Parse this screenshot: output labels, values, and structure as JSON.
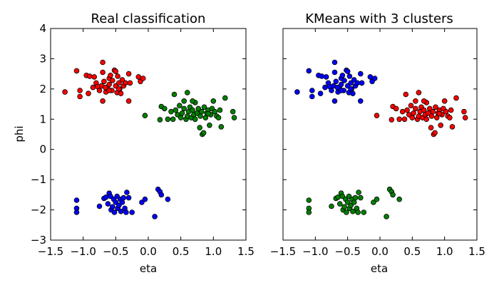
{
  "chart_data": [
    {
      "type": "scatter",
      "title": "Real classification",
      "xlabel": "eta",
      "ylabel": "phi",
      "xlim": [
        -1.5,
        1.5
      ],
      "ylim": [
        -3,
        4
      ],
      "xticks": [
        -1.5,
        -1.0,
        -0.5,
        0.0,
        0.5,
        1.0,
        1.5
      ],
      "xtick_labels": [
        "−1.5",
        "−1.0",
        "−0.5",
        "0.0",
        "0.5",
        "1.0",
        "1.5"
      ],
      "yticks": [
        -3,
        -2,
        -1,
        0,
        1,
        2,
        3,
        4
      ],
      "ytick_labels": [
        "−3",
        "−2",
        "−1",
        "0",
        "1",
        "2",
        "3",
        "4"
      ],
      "grid": false,
      "series": [
        {
          "color": "#ff0000",
          "points": [
            [
              -1.28,
              1.9
            ],
            [
              -1.1,
              2.6
            ],
            [
              -1.05,
              1.75
            ],
            [
              -1.05,
              1.95
            ],
            [
              -0.95,
              2.45
            ],
            [
              -0.9,
              2.42
            ],
            [
              -0.92,
              1.85
            ],
            [
              -0.85,
              2.05
            ],
            [
              -0.83,
              2.4
            ],
            [
              -0.8,
              2.2
            ],
            [
              -0.75,
              1.95
            ],
            [
              -0.72,
              2.1
            ],
            [
              -0.7,
              2.88
            ],
            [
              -0.7,
              2.55
            ],
            [
              -0.7,
              1.6
            ],
            [
              -0.68,
              2.25
            ],
            [
              -0.65,
              1.9
            ],
            [
              -0.62,
              2.0
            ],
            [
              -0.6,
              2.35
            ],
            [
              -0.6,
              2.15
            ],
            [
              -0.58,
              2.45
            ],
            [
              -0.56,
              1.95
            ],
            [
              -0.55,
              2.28
            ],
            [
              -0.52,
              2.62
            ],
            [
              -0.5,
              2.58
            ],
            [
              -0.5,
              2.1
            ],
            [
              -0.48,
              1.88
            ],
            [
              -0.47,
              2.42
            ],
            [
              -0.45,
              2.2
            ],
            [
              -0.44,
              2.0
            ],
            [
              -0.42,
              1.85
            ],
            [
              -0.4,
              2.3
            ],
            [
              -0.38,
              2.1
            ],
            [
              -0.35,
              2.2
            ],
            [
              -0.3,
              2.5
            ],
            [
              -0.3,
              1.6
            ],
            [
              -0.28,
              2.2
            ],
            [
              -0.15,
              2.4
            ],
            [
              -0.12,
              2.25
            ],
            [
              -0.08,
              2.35
            ],
            [
              -0.6,
              1.95
            ],
            [
              -0.66,
              2.05
            ],
            [
              -0.78,
              2.08
            ],
            [
              -0.45,
              2.0
            ]
          ]
        },
        {
          "color": "#008000",
          "points": [
            [
              -0.05,
              1.12
            ],
            [
              0.2,
              1.42
            ],
            [
              0.25,
              1.35
            ],
            [
              0.18,
              0.98
            ],
            [
              0.3,
              1.0
            ],
            [
              0.35,
              1.25
            ],
            [
              0.38,
              1.0
            ],
            [
              0.4,
              1.82
            ],
            [
              0.42,
              1.3
            ],
            [
              0.45,
              1.15
            ],
            [
              0.48,
              1.45
            ],
            [
              0.5,
              1.05
            ],
            [
              0.52,
              1.2
            ],
            [
              0.55,
              1.35
            ],
            [
              0.58,
              1.0
            ],
            [
              0.6,
              1.88
            ],
            [
              0.6,
              1.1
            ],
            [
              0.62,
              1.25
            ],
            [
              0.64,
              1.4
            ],
            [
              0.66,
              1.05
            ],
            [
              0.68,
              1.3
            ],
            [
              0.7,
              1.15
            ],
            [
              0.72,
              1.0
            ],
            [
              0.72,
              1.55
            ],
            [
              0.75,
              1.2
            ],
            [
              0.77,
              1.35
            ],
            [
              0.79,
              0.72
            ],
            [
              0.8,
              1.1
            ],
            [
              0.82,
              1.25
            ],
            [
              0.83,
              0.5
            ],
            [
              0.85,
              0.55
            ],
            [
              0.86,
              1.4
            ],
            [
              0.88,
              1.05
            ],
            [
              0.9,
              1.2
            ],
            [
              0.92,
              1.3
            ],
            [
              0.94,
              0.8
            ],
            [
              0.96,
              1.15
            ],
            [
              0.98,
              1.35
            ],
            [
              1.0,
              1.6
            ],
            [
              1.02,
              1.25
            ],
            [
              1.05,
              1.1
            ],
            [
              1.08,
              1.05
            ],
            [
              1.1,
              1.3
            ],
            [
              1.12,
              0.75
            ],
            [
              1.18,
              1.7
            ],
            [
              1.3,
              1.25
            ],
            [
              1.32,
              1.05
            ],
            [
              0.68,
              1.6
            ],
            [
              0.55,
              1.6
            ],
            [
              0.92,
              1.18
            ]
          ]
        },
        {
          "color": "#0000ff",
          "points": [
            [
              -1.1,
              -1.68
            ],
            [
              -1.1,
              -1.95
            ],
            [
              -1.1,
              -2.08
            ],
            [
              -0.75,
              -1.88
            ],
            [
              -0.68,
              -1.62
            ],
            [
              -0.65,
              -1.58
            ],
            [
              -0.62,
              -1.8
            ],
            [
              -0.6,
              -1.45
            ],
            [
              -0.58,
              -1.55
            ],
            [
              -0.57,
              -2.0
            ],
            [
              -0.55,
              -1.9
            ],
            [
              -0.53,
              -1.65
            ],
            [
              -0.52,
              -2.08
            ],
            [
              -0.5,
              -1.75
            ],
            [
              -0.48,
              -1.55
            ],
            [
              -0.47,
              -1.95
            ],
            [
              -0.45,
              -1.85
            ],
            [
              -0.43,
              -1.65
            ],
            [
              -0.42,
              -2.05
            ],
            [
              -0.4,
              -1.75
            ],
            [
              -0.38,
              -1.6
            ],
            [
              -0.36,
              -1.95
            ],
            [
              -0.34,
              -2.08
            ],
            [
              -0.33,
              -1.42
            ],
            [
              -0.3,
              -1.6
            ],
            [
              -0.25,
              -2.08
            ],
            [
              -0.1,
              -1.75
            ],
            [
              -0.05,
              -1.65
            ],
            [
              0.1,
              -2.22
            ],
            [
              0.15,
              -1.32
            ],
            [
              0.18,
              -1.4
            ],
            [
              0.2,
              -1.5
            ],
            [
              0.3,
              -1.65
            ]
          ]
        }
      ]
    },
    {
      "type": "scatter",
      "title": "KMeans with 3 clusters",
      "xlabel": "eta",
      "xlim": [
        -1.5,
        1.5
      ],
      "ylim": [
        -3,
        4
      ],
      "xticks": [
        -1.5,
        -1.0,
        -0.5,
        0.0,
        0.5,
        1.0,
        1.5
      ],
      "xtick_labels": [
        "−1.5",
        "−1.0",
        "−0.5",
        "0.0",
        "0.5",
        "1.0",
        "1.5"
      ],
      "yticks": [
        -3,
        -2,
        -1,
        0,
        1,
        2,
        3,
        4
      ],
      "grid": false,
      "series": [
        {
          "color": "#0000ff",
          "points": [
            [
              -1.28,
              1.9
            ],
            [
              -1.1,
              2.6
            ],
            [
              -1.05,
              1.75
            ],
            [
              -1.05,
              1.95
            ],
            [
              -0.95,
              2.45
            ],
            [
              -0.9,
              2.42
            ],
            [
              -0.92,
              1.85
            ],
            [
              -0.85,
              2.05
            ],
            [
              -0.83,
              2.4
            ],
            [
              -0.8,
              2.2
            ],
            [
              -0.75,
              1.95
            ],
            [
              -0.72,
              2.1
            ],
            [
              -0.7,
              2.88
            ],
            [
              -0.7,
              2.55
            ],
            [
              -0.7,
              1.6
            ],
            [
              -0.68,
              2.25
            ],
            [
              -0.65,
              1.9
            ],
            [
              -0.62,
              2.0
            ],
            [
              -0.6,
              2.35
            ],
            [
              -0.6,
              2.15
            ],
            [
              -0.58,
              2.45
            ],
            [
              -0.56,
              1.95
            ],
            [
              -0.55,
              2.28
            ],
            [
              -0.52,
              2.62
            ],
            [
              -0.5,
              2.58
            ],
            [
              -0.5,
              2.1
            ],
            [
              -0.48,
              1.88
            ],
            [
              -0.47,
              2.42
            ],
            [
              -0.45,
              2.2
            ],
            [
              -0.44,
              2.0
            ],
            [
              -0.42,
              1.85
            ],
            [
              -0.4,
              2.3
            ],
            [
              -0.38,
              2.1
            ],
            [
              -0.35,
              2.2
            ],
            [
              -0.3,
              2.5
            ],
            [
              -0.3,
              1.6
            ],
            [
              -0.28,
              2.2
            ],
            [
              -0.15,
              2.4
            ],
            [
              -0.12,
              2.25
            ],
            [
              -0.08,
              2.35
            ],
            [
              -0.6,
              1.95
            ],
            [
              -0.66,
              2.05
            ],
            [
              -0.78,
              2.08
            ],
            [
              -0.45,
              2.0
            ]
          ]
        },
        {
          "color": "#ff0000",
          "points": [
            [
              -0.05,
              1.12
            ],
            [
              0.2,
              1.42
            ],
            [
              0.25,
              1.35
            ],
            [
              0.18,
              0.98
            ],
            [
              0.3,
              1.0
            ],
            [
              0.35,
              1.25
            ],
            [
              0.38,
              1.0
            ],
            [
              0.4,
              1.82
            ],
            [
              0.42,
              1.3
            ],
            [
              0.45,
              1.15
            ],
            [
              0.48,
              1.45
            ],
            [
              0.5,
              1.05
            ],
            [
              0.52,
              1.2
            ],
            [
              0.55,
              1.35
            ],
            [
              0.58,
              1.0
            ],
            [
              0.6,
              1.88
            ],
            [
              0.6,
              1.1
            ],
            [
              0.62,
              1.25
            ],
            [
              0.64,
              1.4
            ],
            [
              0.66,
              1.05
            ],
            [
              0.68,
              1.3
            ],
            [
              0.7,
              1.15
            ],
            [
              0.72,
              1.0
            ],
            [
              0.72,
              1.55
            ],
            [
              0.75,
              1.2
            ],
            [
              0.77,
              1.35
            ],
            [
              0.79,
              0.72
            ],
            [
              0.8,
              1.1
            ],
            [
              0.82,
              1.25
            ],
            [
              0.83,
              0.5
            ],
            [
              0.85,
              0.55
            ],
            [
              0.86,
              1.4
            ],
            [
              0.88,
              1.05
            ],
            [
              0.9,
              1.2
            ],
            [
              0.92,
              1.3
            ],
            [
              0.94,
              0.8
            ],
            [
              0.96,
              1.15
            ],
            [
              0.98,
              1.35
            ],
            [
              1.0,
              1.6
            ],
            [
              1.02,
              1.25
            ],
            [
              1.05,
              1.1
            ],
            [
              1.08,
              1.05
            ],
            [
              1.1,
              1.3
            ],
            [
              1.12,
              0.75
            ],
            [
              1.18,
              1.7
            ],
            [
              1.3,
              1.25
            ],
            [
              1.32,
              1.05
            ],
            [
              0.68,
              1.6
            ],
            [
              0.55,
              1.6
            ],
            [
              0.92,
              1.18
            ]
          ]
        },
        {
          "color": "#008000",
          "points": [
            [
              -1.1,
              -1.68
            ],
            [
              -1.1,
              -1.95
            ],
            [
              -1.1,
              -2.08
            ],
            [
              -0.75,
              -1.88
            ],
            [
              -0.68,
              -1.62
            ],
            [
              -0.65,
              -1.58
            ],
            [
              -0.62,
              -1.8
            ],
            [
              -0.6,
              -1.45
            ],
            [
              -0.58,
              -1.55
            ],
            [
              -0.57,
              -2.0
            ],
            [
              -0.55,
              -1.9
            ],
            [
              -0.53,
              -1.65
            ],
            [
              -0.52,
              -2.08
            ],
            [
              -0.5,
              -1.75
            ],
            [
              -0.48,
              -1.55
            ],
            [
              -0.47,
              -1.95
            ],
            [
              -0.45,
              -1.85
            ],
            [
              -0.43,
              -1.65
            ],
            [
              -0.42,
              -2.05
            ],
            [
              -0.4,
              -1.75
            ],
            [
              -0.38,
              -1.6
            ],
            [
              -0.36,
              -1.95
            ],
            [
              -0.34,
              -2.08
            ],
            [
              -0.33,
              -1.42
            ],
            [
              -0.3,
              -1.6
            ],
            [
              -0.25,
              -2.08
            ],
            [
              -0.1,
              -1.75
            ],
            [
              -0.05,
              -1.65
            ],
            [
              0.1,
              -2.22
            ],
            [
              0.15,
              -1.32
            ],
            [
              0.18,
              -1.4
            ],
            [
              0.2,
              -1.5
            ],
            [
              0.3,
              -1.65
            ]
          ]
        }
      ]
    }
  ]
}
